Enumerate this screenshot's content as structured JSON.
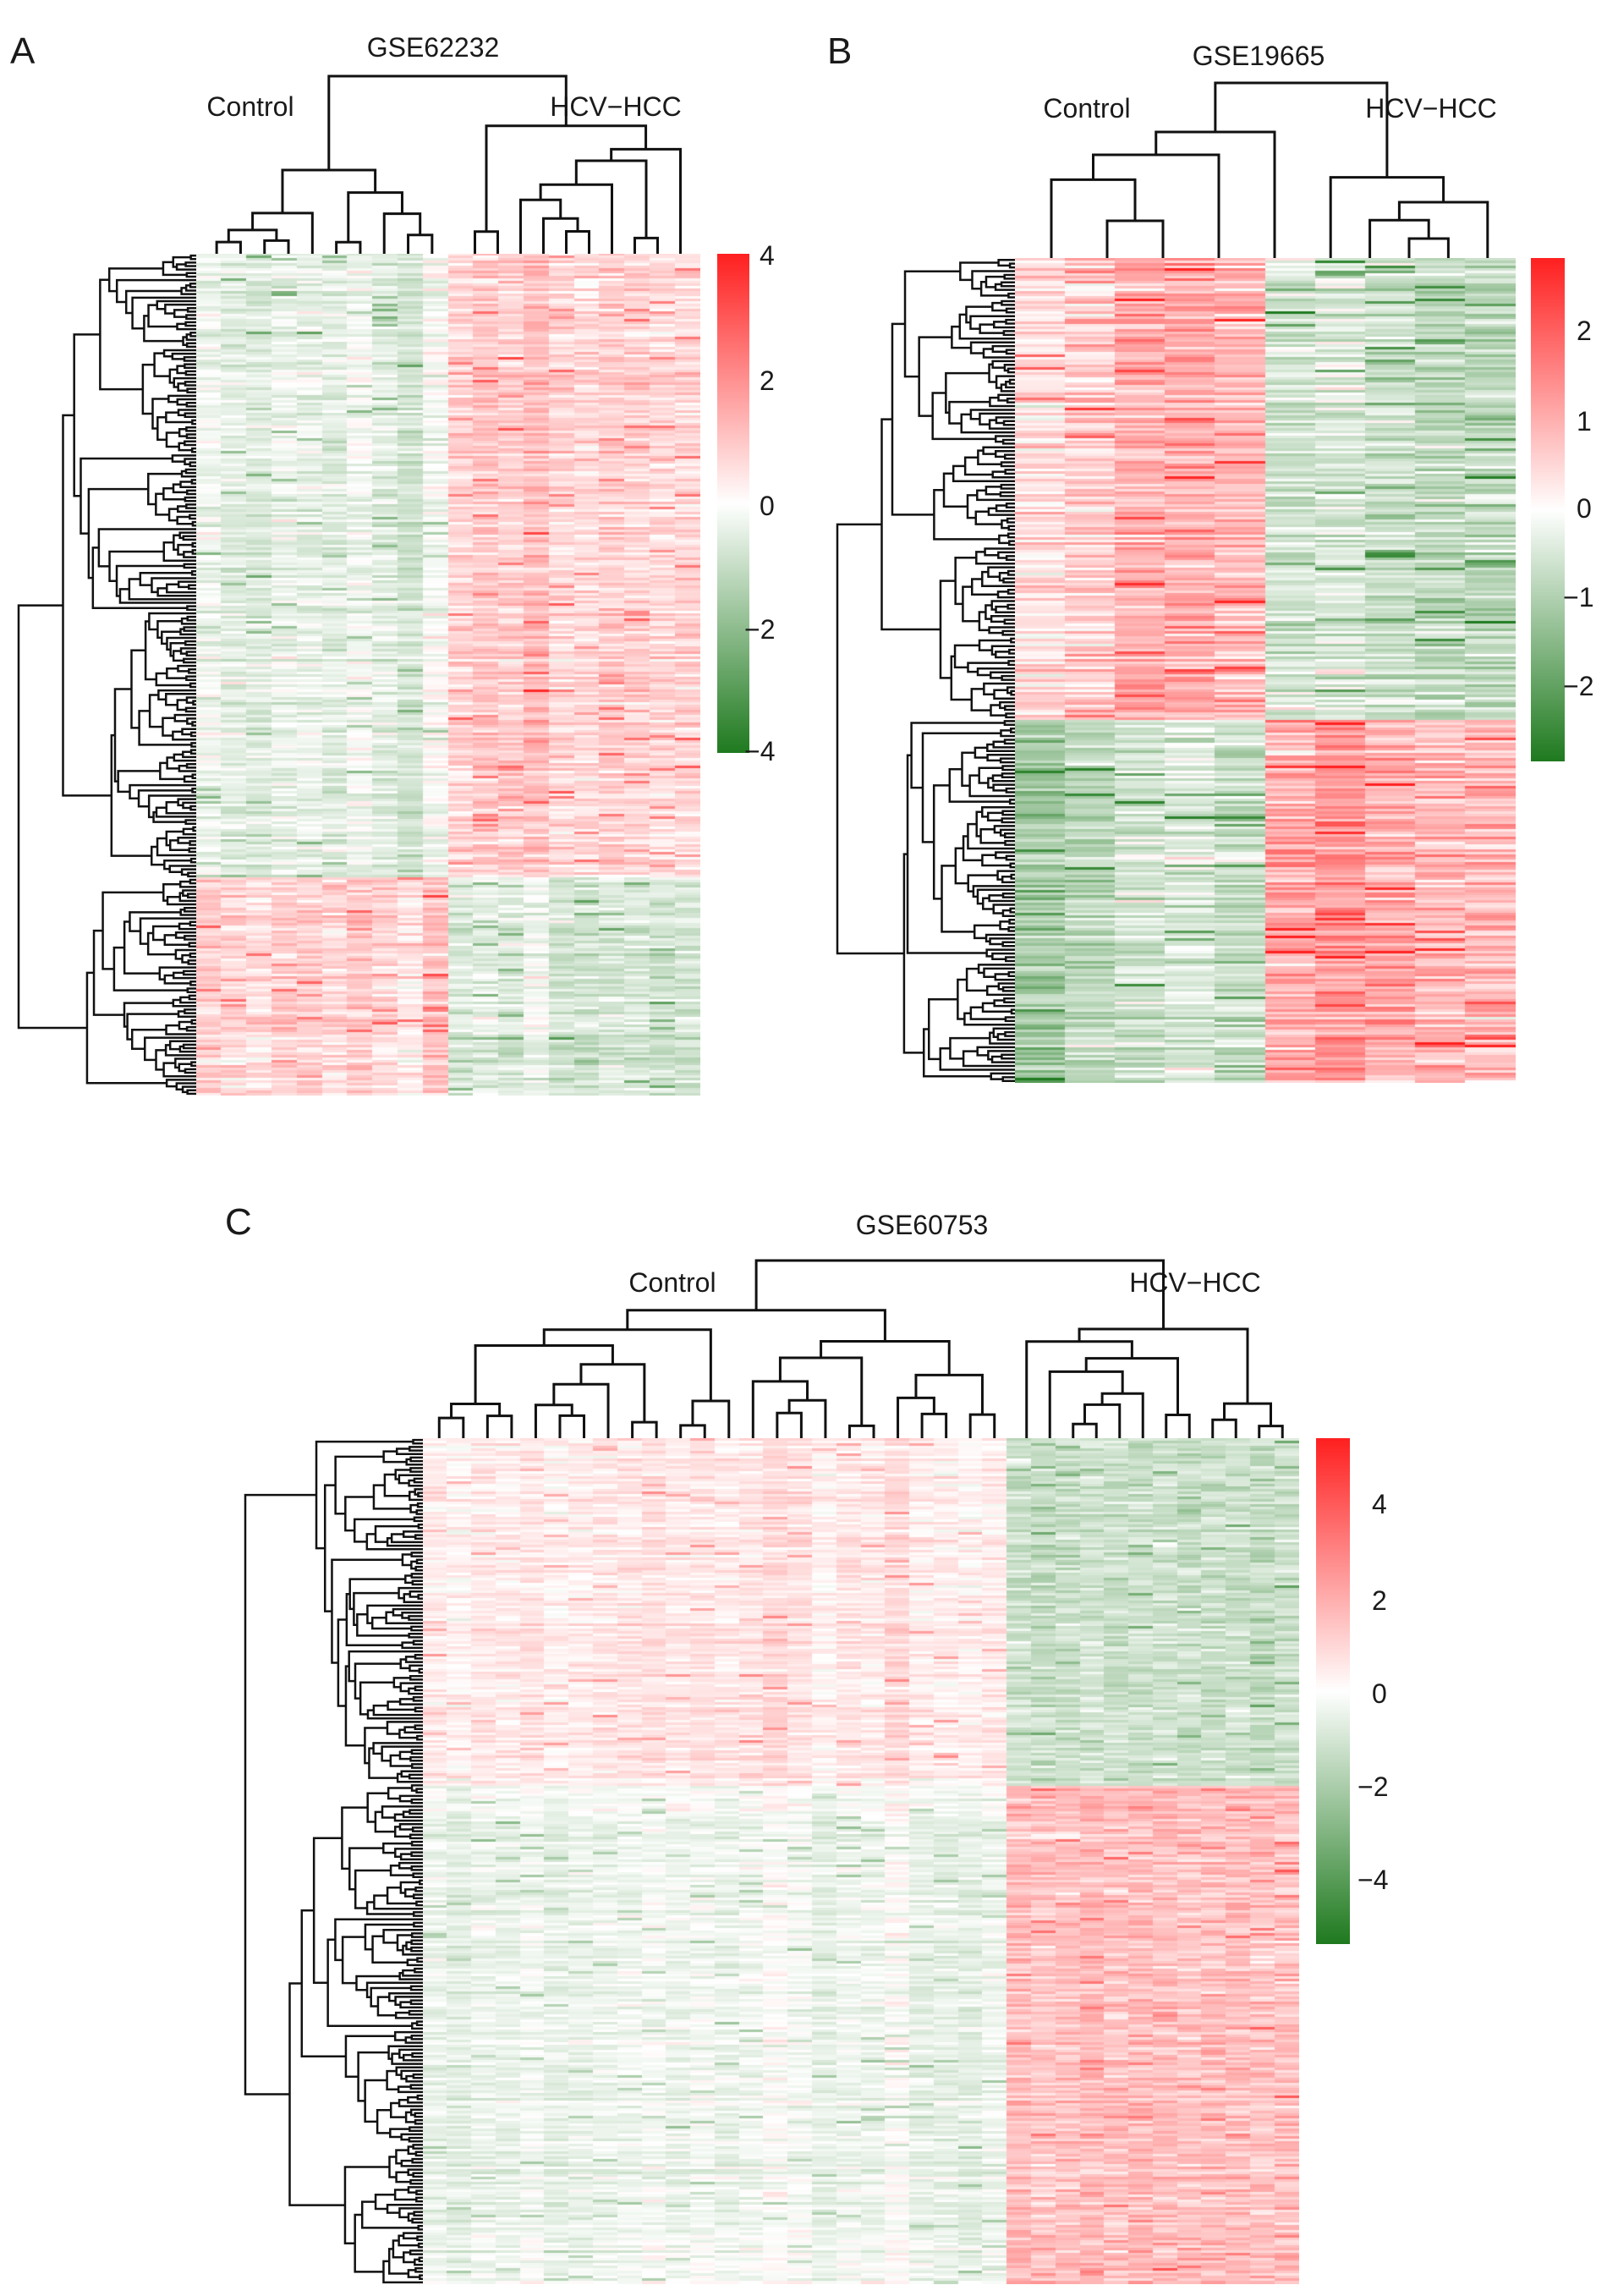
{
  "chart_data": [
    {
      "panel": "A",
      "type": "heatmap",
      "title": "GSE62232",
      "groups": [
        "Control",
        "HCV-HCC"
      ],
      "samples": {
        "Control": 10,
        "HCV-HCC": 10
      },
      "color_scale": {
        "low": "#1f7a1f",
        "mid": "#ffffff",
        "high": "#ff2020",
        "min": -4,
        "max": 4,
        "ticks": [
          4,
          2,
          0,
          -2,
          -4
        ]
      },
      "gene_clusters": [
        {
          "fraction": 0.74,
          "Control": -0.45,
          "HCV-HCC": 0.85
        },
        {
          "fraction": 0.26,
          "Control": 0.8,
          "HCV-HCC": -0.7
        }
      ]
    },
    {
      "panel": "B",
      "type": "heatmap",
      "title": "GSE19665",
      "groups": [
        "Control",
        "HCV-HCC"
      ],
      "samples": {
        "Control": 5,
        "HCV-HCC": 5
      },
      "color_scale": {
        "low": "#1f7a1f",
        "mid": "#ffffff",
        "high": "#ff2020",
        "min": -2.8,
        "max": 2.8,
        "ticks": [
          2,
          1,
          0,
          -1,
          -2
        ]
      },
      "gene_clusters": [
        {
          "fraction": 0.56,
          "Control": 0.9,
          "HCV-HCC": -0.75
        },
        {
          "fraction": 0.44,
          "Control": -0.7,
          "HCV-HCC": 1.0
        }
      ]
    },
    {
      "panel": "C",
      "type": "heatmap",
      "title": "GSE60753",
      "groups": [
        "Control",
        "HCV-HCC"
      ],
      "samples": {
        "Control": 24,
        "HCV-HCC": 12
      },
      "color_scale": {
        "low": "#1f7a1f",
        "mid": "#ffffff",
        "high": "#ff2020",
        "min": -5.4,
        "max": 5.4,
        "ticks": [
          4,
          2,
          0,
          -2,
          -4
        ]
      },
      "gene_clusters": [
        {
          "fraction": 0.41,
          "Control": 0.6,
          "HCV-HCC": -1.3
        },
        {
          "fraction": 0.59,
          "Control": -0.35,
          "HCV-HCC": 1.6
        }
      ]
    }
  ]
}
